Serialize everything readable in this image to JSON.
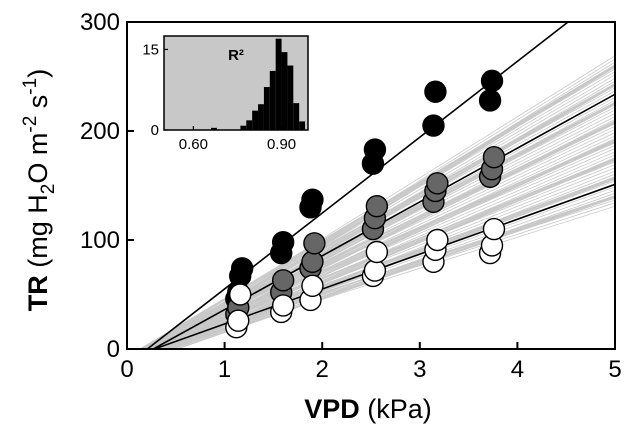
{
  "chart_data": [
    {
      "type": "scatter",
      "xlabel": {
        "bold": "VPD",
        "rest": " (kPa)"
      },
      "ylabel": {
        "bold": "TR",
        "rest": " (mg H",
        "sub": "2",
        "mid": "O m",
        "sup1": "-2",
        "mid2": " s",
        "sup2": "-1",
        "end": ")"
      },
      "xlim": [
        0,
        5
      ],
      "ylim": [
        0,
        300
      ],
      "xticks": [
        "0",
        "1",
        "2",
        "3",
        "4",
        "5"
      ],
      "yticks": [
        "0",
        "100",
        "200",
        "300"
      ],
      "grid": false,
      "colors": {
        "high": "#000000",
        "mid": "#666666",
        "low": "#ffffff",
        "fan": "#c8c8c8"
      },
      "series": [
        {
          "group": "high",
          "points": [
            [
              1.12,
              46
            ],
            [
              1.14,
              52
            ],
            [
              1.16,
              67
            ],
            [
              1.18,
              74
            ],
            [
              1.58,
              88
            ],
            [
              1.6,
              98
            ],
            [
              1.88,
              130
            ],
            [
              1.9,
              137
            ],
            [
              2.52,
              170
            ],
            [
              2.54,
              183
            ],
            [
              3.14,
              205
            ],
            [
              3.16,
              236
            ],
            [
              3.72,
              228
            ],
            [
              3.74,
              246
            ]
          ],
          "fit": {
            "slope": 69.6,
            "intercept": -14.5
          }
        },
        {
          "group": "mid",
          "points": [
            [
              1.12,
              32
            ],
            [
              1.14,
              38
            ],
            [
              1.58,
              52
            ],
            [
              1.6,
              63
            ],
            [
              1.88,
              74
            ],
            [
              1.9,
              80
            ],
            [
              1.92,
              97
            ],
            [
              2.52,
              110
            ],
            [
              2.54,
              120
            ],
            [
              2.56,
              131
            ],
            [
              3.14,
              135
            ],
            [
              3.16,
              145
            ],
            [
              3.18,
              152
            ],
            [
              3.72,
              158
            ],
            [
              3.74,
              165
            ],
            [
              3.76,
              176
            ]
          ],
          "fit": {
            "slope": 49.4,
            "intercept": -13.3
          }
        },
        {
          "group": "low",
          "points": [
            [
              1.12,
              20
            ],
            [
              1.14,
              26
            ],
            [
              1.16,
              50
            ],
            [
              1.58,
              34
            ],
            [
              1.6,
              40
            ],
            [
              1.88,
              45
            ],
            [
              1.9,
              58
            ],
            [
              2.52,
              67
            ],
            [
              2.54,
              72
            ],
            [
              2.56,
              89
            ],
            [
              3.14,
              80
            ],
            [
              3.16,
              91
            ],
            [
              3.18,
              100
            ],
            [
              3.72,
              88
            ],
            [
              3.74,
              95
            ],
            [
              3.76,
              110
            ]
          ],
          "fit": {
            "slope": 32.0,
            "intercept": -9.0
          }
        }
      ],
      "fan": {
        "count": 120,
        "slope_min": 28.5,
        "slope_max": 56.0,
        "intercept_min": -16,
        "intercept_max": -7
      }
    },
    {
      "type": "bar",
      "title": "R²",
      "xticks": [
        "0.60",
        "0.90"
      ],
      "yticks": [
        "0",
        "15"
      ],
      "xlim": [
        0.5,
        0.99
      ],
      "ylim": [
        0,
        17.5
      ],
      "bin_width": 0.02,
      "bins": [
        0.66,
        0.76,
        0.78,
        0.8,
        0.82,
        0.84,
        0.86,
        0.88,
        0.9,
        0.92,
        0.94,
        0.96
      ],
      "counts": [
        0.4,
        0.8,
        1.8,
        3.6,
        4.8,
        8.0,
        11.0,
        17.0,
        14.5,
        12.0,
        5.0,
        1.6
      ],
      "bg": "#c8c8c8"
    }
  ]
}
